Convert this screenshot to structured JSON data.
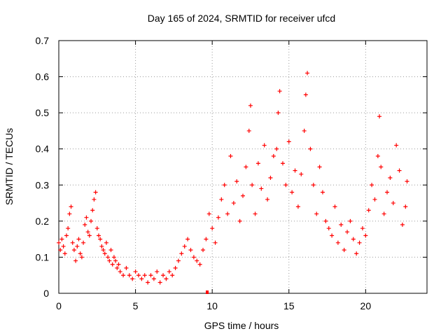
{
  "chart_data": {
    "type": "scatter",
    "title": "Day 165 of 2024, SRMTID for receiver ufcd",
    "xlabel": "GPS time / hours",
    "ylabel": "SRMTID / TECUs",
    "xlim": [
      0,
      24
    ],
    "ylim": [
      0,
      0.7
    ],
    "xticks": [
      0,
      5,
      10,
      15,
      20
    ],
    "yticks": [
      0,
      0.1,
      0.2,
      0.3,
      0.4,
      0.5,
      0.6,
      0.7
    ],
    "grid": true,
    "marker": "+",
    "series": [
      {
        "name": "SRMTID",
        "color": "#ff0000",
        "points": [
          [
            0.0,
            0.14
          ],
          [
            0.1,
            0.12
          ],
          [
            0.2,
            0.15
          ],
          [
            0.3,
            0.13
          ],
          [
            0.4,
            0.11
          ],
          [
            0.5,
            0.16
          ],
          [
            0.6,
            0.18
          ],
          [
            0.7,
            0.22
          ],
          [
            0.8,
            0.24
          ],
          [
            0.9,
            0.14
          ],
          [
            1.0,
            0.12
          ],
          [
            1.1,
            0.09
          ],
          [
            1.2,
            0.13
          ],
          [
            1.3,
            0.15
          ],
          [
            1.4,
            0.11
          ],
          [
            1.5,
            0.1
          ],
          [
            1.6,
            0.14
          ],
          [
            1.7,
            0.19
          ],
          [
            1.8,
            0.21
          ],
          [
            1.9,
            0.17
          ],
          [
            2.0,
            0.16
          ],
          [
            2.1,
            0.2
          ],
          [
            2.2,
            0.23
          ],
          [
            2.3,
            0.26
          ],
          [
            2.4,
            0.28
          ],
          [
            2.5,
            0.18
          ],
          [
            2.6,
            0.16
          ],
          [
            2.7,
            0.15
          ],
          [
            2.8,
            0.13
          ],
          [
            2.9,
            0.12
          ],
          [
            3.0,
            0.11
          ],
          [
            3.1,
            0.14
          ],
          [
            3.2,
            0.1
          ],
          [
            3.3,
            0.09
          ],
          [
            3.4,
            0.12
          ],
          [
            3.5,
            0.08
          ],
          [
            3.6,
            0.1
          ],
          [
            3.7,
            0.09
          ],
          [
            3.8,
            0.07
          ],
          [
            3.9,
            0.08
          ],
          [
            4.0,
            0.06
          ],
          [
            4.2,
            0.05
          ],
          [
            4.4,
            0.07
          ],
          [
            4.6,
            0.05
          ],
          [
            4.8,
            0.04
          ],
          [
            5.0,
            0.06
          ],
          [
            5.2,
            0.05
          ],
          [
            5.4,
            0.04
          ],
          [
            5.6,
            0.05
          ],
          [
            5.8,
            0.03
          ],
          [
            6.0,
            0.05
          ],
          [
            6.2,
            0.04
          ],
          [
            6.4,
            0.06
          ],
          [
            6.6,
            0.03
          ],
          [
            6.8,
            0.05
          ],
          [
            7.0,
            0.04
          ],
          [
            7.2,
            0.06
          ],
          [
            7.4,
            0.05
          ],
          [
            7.6,
            0.07
          ],
          [
            7.8,
            0.09
          ],
          [
            8.0,
            0.11
          ],
          [
            8.2,
            0.13
          ],
          [
            8.4,
            0.15
          ],
          [
            8.6,
            0.12
          ],
          [
            8.8,
            0.1
          ],
          [
            9.0,
            0.09
          ],
          [
            9.2,
            0.08
          ],
          [
            9.4,
            0.12
          ],
          [
            9.6,
            0.15
          ],
          [
            9.8,
            0.22
          ],
          [
            10.0,
            0.18
          ],
          [
            10.2,
            0.14
          ],
          [
            10.4,
            0.21
          ],
          [
            10.6,
            0.26
          ],
          [
            10.8,
            0.3
          ],
          [
            11.0,
            0.22
          ],
          [
            11.2,
            0.38
          ],
          [
            11.4,
            0.25
          ],
          [
            11.6,
            0.31
          ],
          [
            11.8,
            0.2
          ],
          [
            12.0,
            0.27
          ],
          [
            12.2,
            0.35
          ],
          [
            12.4,
            0.45
          ],
          [
            12.5,
            0.52
          ],
          [
            12.6,
            0.3
          ],
          [
            12.8,
            0.22
          ],
          [
            13.0,
            0.36
          ],
          [
            13.2,
            0.29
          ],
          [
            13.4,
            0.41
          ],
          [
            13.6,
            0.26
          ],
          [
            13.8,
            0.32
          ],
          [
            14.0,
            0.38
          ],
          [
            14.2,
            0.4
          ],
          [
            14.3,
            0.5
          ],
          [
            14.4,
            0.56
          ],
          [
            14.6,
            0.36
          ],
          [
            14.8,
            0.3
          ],
          [
            15.0,
            0.42
          ],
          [
            15.2,
            0.28
          ],
          [
            15.4,
            0.34
          ],
          [
            15.6,
            0.24
          ],
          [
            15.8,
            0.33
          ],
          [
            16.0,
            0.45
          ],
          [
            16.1,
            0.55
          ],
          [
            16.2,
            0.61
          ],
          [
            16.4,
            0.4
          ],
          [
            16.6,
            0.3
          ],
          [
            16.8,
            0.22
          ],
          [
            17.0,
            0.35
          ],
          [
            17.2,
            0.28
          ],
          [
            17.4,
            0.2
          ],
          [
            17.6,
            0.18
          ],
          [
            17.8,
            0.16
          ],
          [
            18.0,
            0.24
          ],
          [
            18.2,
            0.14
          ],
          [
            18.4,
            0.19
          ],
          [
            18.6,
            0.12
          ],
          [
            18.8,
            0.17
          ],
          [
            19.0,
            0.2
          ],
          [
            19.2,
            0.15
          ],
          [
            19.4,
            0.11
          ],
          [
            19.6,
            0.14
          ],
          [
            19.8,
            0.18
          ],
          [
            20.0,
            0.16
          ],
          [
            20.2,
            0.23
          ],
          [
            20.4,
            0.3
          ],
          [
            20.6,
            0.26
          ],
          [
            20.8,
            0.38
          ],
          [
            20.9,
            0.49
          ],
          [
            21.0,
            0.35
          ],
          [
            21.2,
            0.22
          ],
          [
            21.4,
            0.28
          ],
          [
            21.6,
            0.32
          ],
          [
            21.8,
            0.25
          ],
          [
            22.0,
            0.41
          ],
          [
            22.2,
            0.34
          ],
          [
            22.4,
            0.19
          ],
          [
            22.6,
            0.24
          ],
          [
            22.7,
            0.31
          ]
        ]
      }
    ]
  }
}
